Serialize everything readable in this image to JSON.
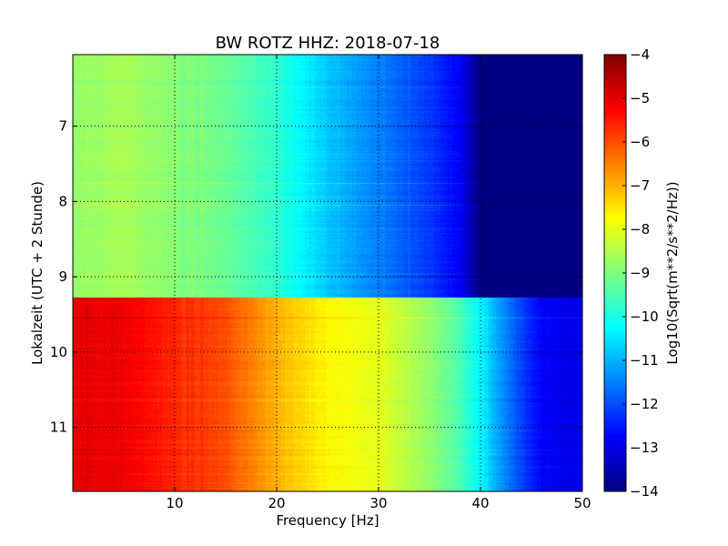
{
  "chart_data": {
    "type": "heatmap",
    "title": "BW ROTZ HHZ: 2018-07-18",
    "xlabel": "Frequency [Hz]",
    "ylabel": "Lokalzeit (UTC + 2 Stunde)",
    "colorbar_label": "Log10(Sqrt(m**2/s**2/Hz))",
    "xlim": [
      0,
      50
    ],
    "ylim": [
      11.85,
      6.05
    ],
    "y_inverted": true,
    "x_ticks": [
      10,
      20,
      30,
      40,
      50
    ],
    "x_tick_labels": [
      "10",
      "20",
      "30",
      "40",
      "50"
    ],
    "y_ticks": [
      7,
      8,
      9,
      10,
      11
    ],
    "y_tick_labels": [
      "7",
      "8",
      "9",
      "10",
      "11"
    ],
    "color_range": [
      -14,
      -4
    ],
    "colorbar_ticks": [
      -4,
      -5,
      -6,
      -7,
      -8,
      -9,
      -10,
      -11,
      -12,
      -13,
      -14
    ],
    "colorbar_tick_labels": [
      "−4",
      "−5",
      "−6",
      "−7",
      "−8",
      "−9",
      "−10",
      "−11",
      "−12",
      "−13",
      "−14"
    ],
    "colormap": "jet",
    "grid": true,
    "segments": [
      {
        "time_range": [
          6.05,
          9.28
        ],
        "frequency_hz": [
          0,
          5,
          10,
          15,
          20,
          25,
          30,
          35,
          38,
          40,
          41,
          50
        ],
        "log10_amplitude": [
          -8.8,
          -8.6,
          -8.9,
          -9.2,
          -9.8,
          -10.8,
          -11.5,
          -12.2,
          -12.8,
          -14.0,
          -14.0,
          -14.0
        ]
      },
      {
        "time_range": [
          9.28,
          11.85
        ],
        "frequency_hz": [
          0,
          5,
          10,
          15,
          20,
          25,
          30,
          35,
          38,
          40,
          43,
          46,
          50
        ],
        "log10_amplitude": [
          -5.0,
          -5.1,
          -5.6,
          -6.0,
          -7.0,
          -7.7,
          -8.0,
          -8.8,
          -9.5,
          -10.3,
          -11.7,
          -12.8,
          -13.0
        ]
      }
    ]
  }
}
